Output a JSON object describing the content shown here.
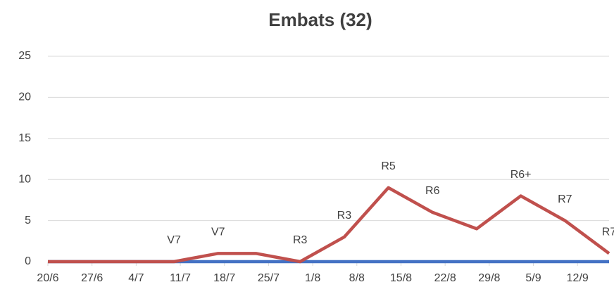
{
  "chart_data": {
    "type": "line",
    "title": "Embats (32)",
    "x": [
      0,
      6,
      13,
      20,
      27,
      33,
      40,
      47,
      54,
      61,
      68,
      75,
      82,
      89
    ],
    "series": [
      {
        "color": "#4472c4",
        "values": [
          0,
          0,
          0,
          0,
          0,
          0,
          0,
          0,
          0,
          0,
          0,
          0,
          0,
          0
        ]
      },
      {
        "color": "#c0504d",
        "values": [
          0,
          0,
          0,
          0,
          1,
          1,
          0,
          3,
          9,
          6,
          4,
          8,
          5,
          1
        ],
        "point_labels": [
          null,
          null,
          null,
          "V7",
          "V7",
          null,
          "R3",
          "R3",
          "R5",
          "R6",
          null,
          "R6+",
          "R7",
          "R7"
        ]
      }
    ],
    "xlim": [
      0,
      89
    ],
    "xticks": [
      {
        "value": 0,
        "label": "20/6"
      },
      {
        "value": 7,
        "label": "27/6"
      },
      {
        "value": 14,
        "label": "4/7"
      },
      {
        "value": 21,
        "label": "11/7"
      },
      {
        "value": 28,
        "label": "18/7"
      },
      {
        "value": 35,
        "label": "25/7"
      },
      {
        "value": 42,
        "label": "1/8"
      },
      {
        "value": 49,
        "label": "8/8"
      },
      {
        "value": 56,
        "label": "15/8"
      },
      {
        "value": 63,
        "label": "22/8"
      },
      {
        "value": 70,
        "label": "29/8"
      },
      {
        "value": 77,
        "label": "5/9"
      },
      {
        "value": 84,
        "label": "12/9"
      }
    ],
    "ylim": [
      0,
      25
    ],
    "yticks": [
      0,
      5,
      10,
      15,
      20,
      25
    ],
    "grid": true
  }
}
